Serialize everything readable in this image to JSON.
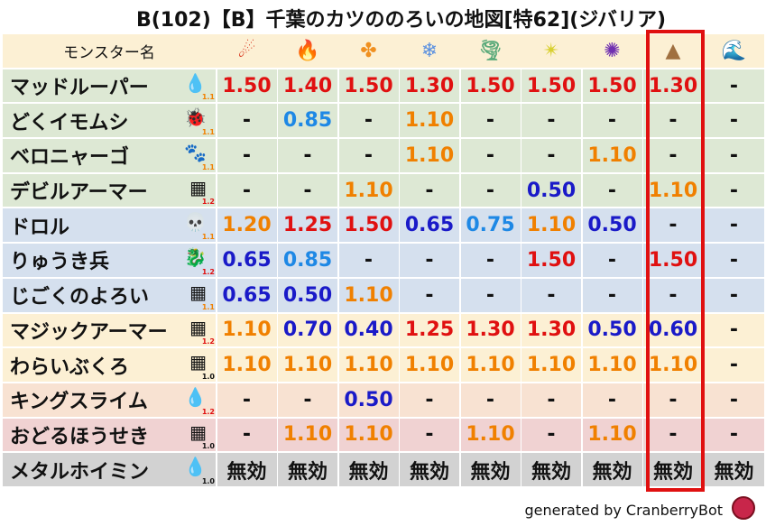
{
  "title": "B(102)【B】千葉のカツののろいの地図[特62](ジバリア)",
  "header": {
    "name_label": "モンスター名",
    "elements": [
      {
        "icon": "fire-icon",
        "glyph": "☄",
        "color": "#d8321a"
      },
      {
        "icon": "flame-icon",
        "glyph": "🔥",
        "color": "#e8501a"
      },
      {
        "icon": "explosion-icon",
        "glyph": "✤",
        "color": "#f09020"
      },
      {
        "icon": "ice-icon",
        "glyph": "❄",
        "color": "#5a90e0"
      },
      {
        "icon": "wind-icon",
        "glyph": "🌪",
        "color": "#5aaa7a"
      },
      {
        "icon": "light-icon",
        "glyph": "✴",
        "color": "#d8d030"
      },
      {
        "icon": "dark-icon",
        "glyph": "✺",
        "color": "#7030b0"
      },
      {
        "icon": "earth-icon",
        "glyph": "▲",
        "color": "#a07040"
      },
      {
        "icon": "water-icon",
        "glyph": "🌊",
        "color": "#2060c0"
      }
    ]
  },
  "colors": {
    "red": "#e01010",
    "orange": "#f08000",
    "lightblue": "#1e88e5",
    "darkblue": "#1a1ac8",
    "highlight": "#e01010"
  },
  "row_bg": {
    "green": "#dde8d4",
    "blue": "#d5e0ee",
    "yellow": "#fcf0d4",
    "peach": "#f8e2d2",
    "pink": "#f0d2d2",
    "gray": "#d2d2d2",
    "header": "#fcf0d4"
  },
  "rows": [
    {
      "name": "マッドルーパー",
      "icon": "water-drop-icon",
      "glyph": "💧",
      "mult": "1.1",
      "bg": "green",
      "values": [
        "1.50",
        "1.40",
        "1.50",
        "1.30",
        "1.50",
        "1.50",
        "1.50",
        "1.30",
        "-"
      ]
    },
    {
      "name": "どくイモムシ",
      "icon": "bug-icon",
      "glyph": "🐞",
      "mult": "1.1",
      "bg": "green",
      "values": [
        "-",
        "0.85",
        "-",
        "1.10",
        "-",
        "-",
        "-",
        "-",
        "-"
      ]
    },
    {
      "name": "ベロニャーゴ",
      "icon": "paw-icon",
      "glyph": "🐾",
      "mult": "1.1",
      "bg": "green",
      "values": [
        "-",
        "-",
        "-",
        "1.10",
        "-",
        "-",
        "1.10",
        "-",
        "-"
      ]
    },
    {
      "name": "デビルアーマー",
      "icon": "brick-wall-icon",
      "glyph": "▦",
      "mult": "1.2",
      "bg": "green",
      "values": [
        "-",
        "-",
        "1.10",
        "-",
        "-",
        "0.50",
        "-",
        "1.10",
        "-"
      ]
    },
    {
      "name": "ドロル",
      "icon": "skull-icon",
      "glyph": "💀",
      "mult": "1.1",
      "bg": "blue",
      "values": [
        "1.20",
        "1.25",
        "1.50",
        "0.65",
        "0.75",
        "1.10",
        "0.50",
        "-",
        "-"
      ]
    },
    {
      "name": "りゅうき兵",
      "icon": "dragon-icon",
      "glyph": "🐉",
      "mult": "1.2",
      "bg": "blue",
      "values": [
        "0.65",
        "0.85",
        "-",
        "-",
        "-",
        "1.50",
        "-",
        "1.50",
        "-"
      ]
    },
    {
      "name": "じごくのよろい",
      "icon": "brick-wall-icon",
      "glyph": "▦",
      "mult": "1.1",
      "bg": "blue",
      "values": [
        "0.65",
        "0.50",
        "1.10",
        "-",
        "-",
        "-",
        "-",
        "-",
        "-"
      ]
    },
    {
      "name": "マジックアーマー",
      "icon": "brick-wall-icon",
      "glyph": "▦",
      "mult": "1.2",
      "bg": "yellow",
      "values": [
        "1.10",
        "0.70",
        "0.40",
        "1.25",
        "1.30",
        "1.30",
        "0.50",
        "0.60",
        "-"
      ]
    },
    {
      "name": "わらいぶくろ",
      "icon": "brick-wall-icon",
      "glyph": "▦",
      "mult": "1.0",
      "bg": "yellow",
      "values": [
        "1.10",
        "1.10",
        "1.10",
        "1.10",
        "1.10",
        "1.10",
        "1.10",
        "1.10",
        "-"
      ]
    },
    {
      "name": "キングスライム",
      "icon": "slime-icon",
      "glyph": "💧",
      "mult": "1.2",
      "bg": "peach",
      "values": [
        "-",
        "-",
        "0.50",
        "-",
        "-",
        "-",
        "-",
        "-",
        "-"
      ]
    },
    {
      "name": "おどるほうせき",
      "icon": "brick-wall-icon",
      "glyph": "▦",
      "mult": "1.0",
      "bg": "pink",
      "values": [
        "-",
        "1.10",
        "1.10",
        "-",
        "1.10",
        "-",
        "1.10",
        "-",
        "-"
      ]
    },
    {
      "name": "メタルホイミン",
      "icon": "slime-icon",
      "glyph": "💧",
      "mult": "1.0",
      "bg": "gray",
      "values": [
        "無効",
        "無効",
        "無効",
        "無効",
        "無効",
        "無効",
        "無効",
        "無効",
        "無効"
      ]
    }
  ],
  "footer": "generated by CranberryBot"
}
